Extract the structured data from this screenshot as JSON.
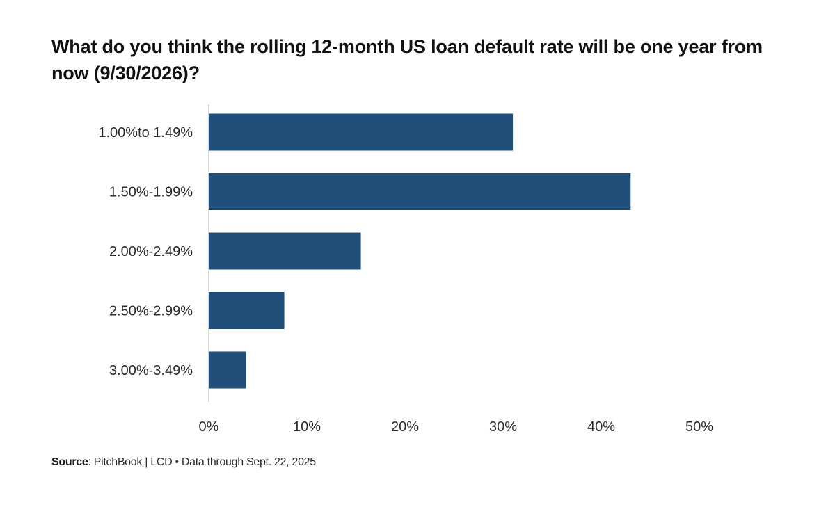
{
  "chart_data": {
    "type": "bar",
    "orientation": "horizontal",
    "title": "What do you think the rolling 12-month US loan default rate will be one year from now (9/30/2026)?",
    "categories": [
      "1.00%to 1.49%",
      "1.50%-1.99%",
      "2.00%-2.49%",
      "2.50%-2.99%",
      "3.00%-3.49%"
    ],
    "values": [
      31,
      43,
      15.5,
      7.7,
      3.8
    ],
    "unit": "%",
    "xlim": [
      0,
      50
    ],
    "xticks": [
      0,
      10,
      20,
      30,
      40,
      50
    ],
    "xtick_labels": [
      "0%",
      "10%",
      "20%",
      "30%",
      "40%",
      "50%"
    ],
    "grid": false,
    "legend": "none",
    "bar_color": "#1f4e79"
  },
  "source": {
    "label": "Source",
    "text": ": PitchBook | LCD • Data through Sept. 22, 2025"
  }
}
